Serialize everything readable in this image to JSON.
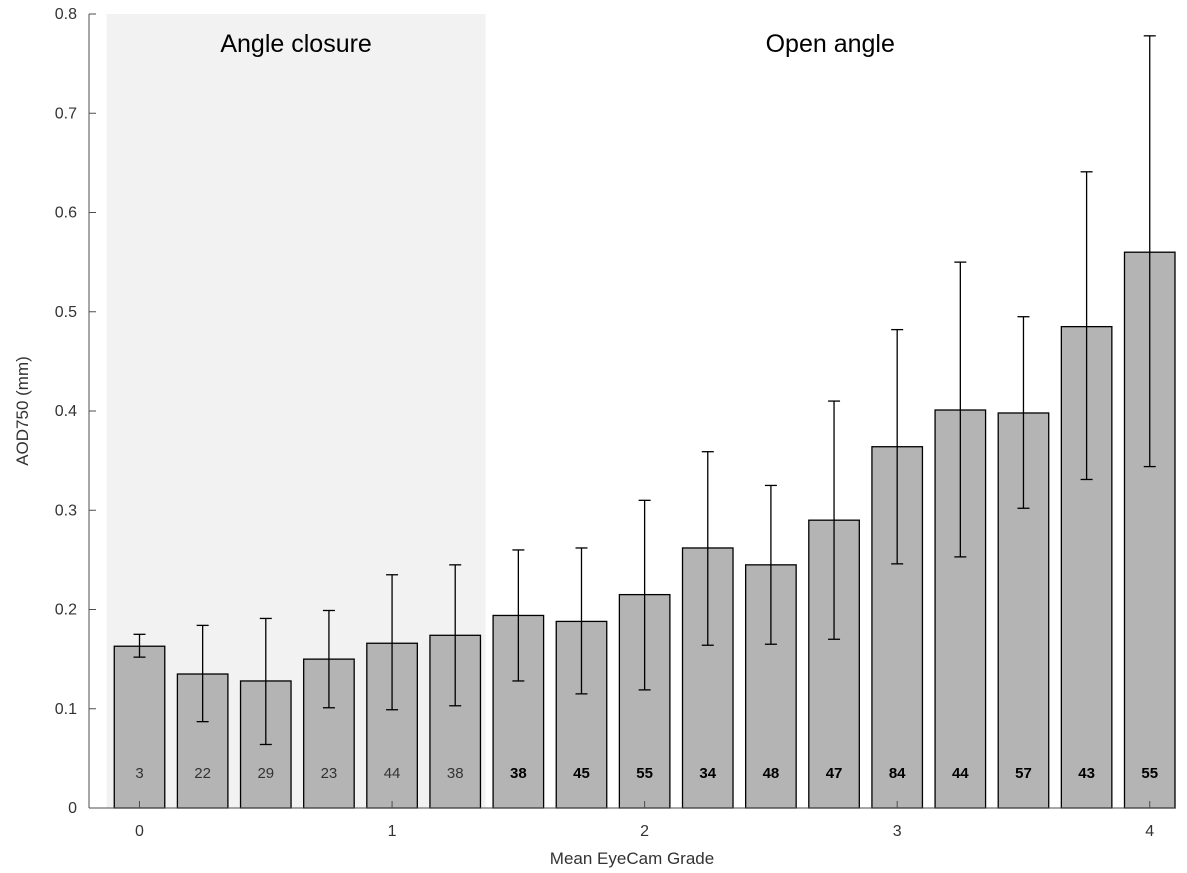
{
  "chart_data": {
    "type": "bar",
    "xlabel": "Mean EyeCam Grade",
    "ylabel": "AOD750 (mm)",
    "ylim": [
      0,
      0.8
    ],
    "xlim": [
      -0.2,
      4.1
    ],
    "x_ticks": [
      0,
      1,
      2,
      3,
      4
    ],
    "y_ticks": [
      0,
      0.1,
      0.2,
      0.3,
      0.4,
      0.5,
      0.6,
      0.7,
      0.8
    ],
    "y_tick_labels": [
      "0",
      "0.1",
      "0.2",
      "0.3",
      "0.4",
      "0.5",
      "0.6",
      "0.7",
      "0.8"
    ],
    "x_tick_labels": [
      "0",
      "1",
      "2",
      "3",
      "4"
    ],
    "bar_width": 0.2,
    "grid": false,
    "regions": [
      {
        "label": "Angle closure",
        "x_start": -0.13,
        "x_end": 1.37,
        "shaded": true,
        "color": "#f2f2f2"
      },
      {
        "label": "Open angle",
        "x_start": 1.37,
        "x_end": 4.1,
        "shaded": false
      }
    ],
    "bar_color": "#b4b4b4",
    "bars": [
      {
        "x": 0.0,
        "value": 0.163,
        "err_low": 0.152,
        "err_high": 0.175,
        "n": "3"
      },
      {
        "x": 0.25,
        "value": 0.135,
        "err_low": 0.087,
        "err_high": 0.184,
        "n": "22"
      },
      {
        "x": 0.5,
        "value": 0.128,
        "err_low": 0.064,
        "err_high": 0.191,
        "n": "29"
      },
      {
        "x": 0.75,
        "value": 0.15,
        "err_low": 0.101,
        "err_high": 0.199,
        "n": "23"
      },
      {
        "x": 1.0,
        "value": 0.166,
        "err_low": 0.099,
        "err_high": 0.235,
        "n": "44"
      },
      {
        "x": 1.25,
        "value": 0.174,
        "err_low": 0.103,
        "err_high": 0.245,
        "n": "38"
      },
      {
        "x": 1.5,
        "value": 0.194,
        "err_low": 0.128,
        "err_high": 0.26,
        "n": "38"
      },
      {
        "x": 1.75,
        "value": 0.188,
        "err_low": 0.115,
        "err_high": 0.262,
        "n": "45"
      },
      {
        "x": 2.0,
        "value": 0.215,
        "err_low": 0.119,
        "err_high": 0.31,
        "n": "55"
      },
      {
        "x": 2.25,
        "value": 0.262,
        "err_low": 0.164,
        "err_high": 0.359,
        "n": "34"
      },
      {
        "x": 2.5,
        "value": 0.245,
        "err_low": 0.165,
        "err_high": 0.325,
        "n": "48"
      },
      {
        "x": 2.75,
        "value": 0.29,
        "err_low": 0.17,
        "err_high": 0.41,
        "n": "47"
      },
      {
        "x": 3.0,
        "value": 0.364,
        "err_low": 0.246,
        "err_high": 0.482,
        "n": "84"
      },
      {
        "x": 3.25,
        "value": 0.401,
        "err_low": 0.253,
        "err_high": 0.55,
        "n": "44"
      },
      {
        "x": 3.5,
        "value": 0.398,
        "err_low": 0.302,
        "err_high": 0.495,
        "n": "57"
      },
      {
        "x": 3.75,
        "value": 0.485,
        "err_low": 0.331,
        "err_high": 0.641,
        "n": "43"
      },
      {
        "x": 4.0,
        "value": 0.56,
        "err_low": 0.344,
        "err_high": 0.778,
        "n": "55"
      }
    ]
  }
}
